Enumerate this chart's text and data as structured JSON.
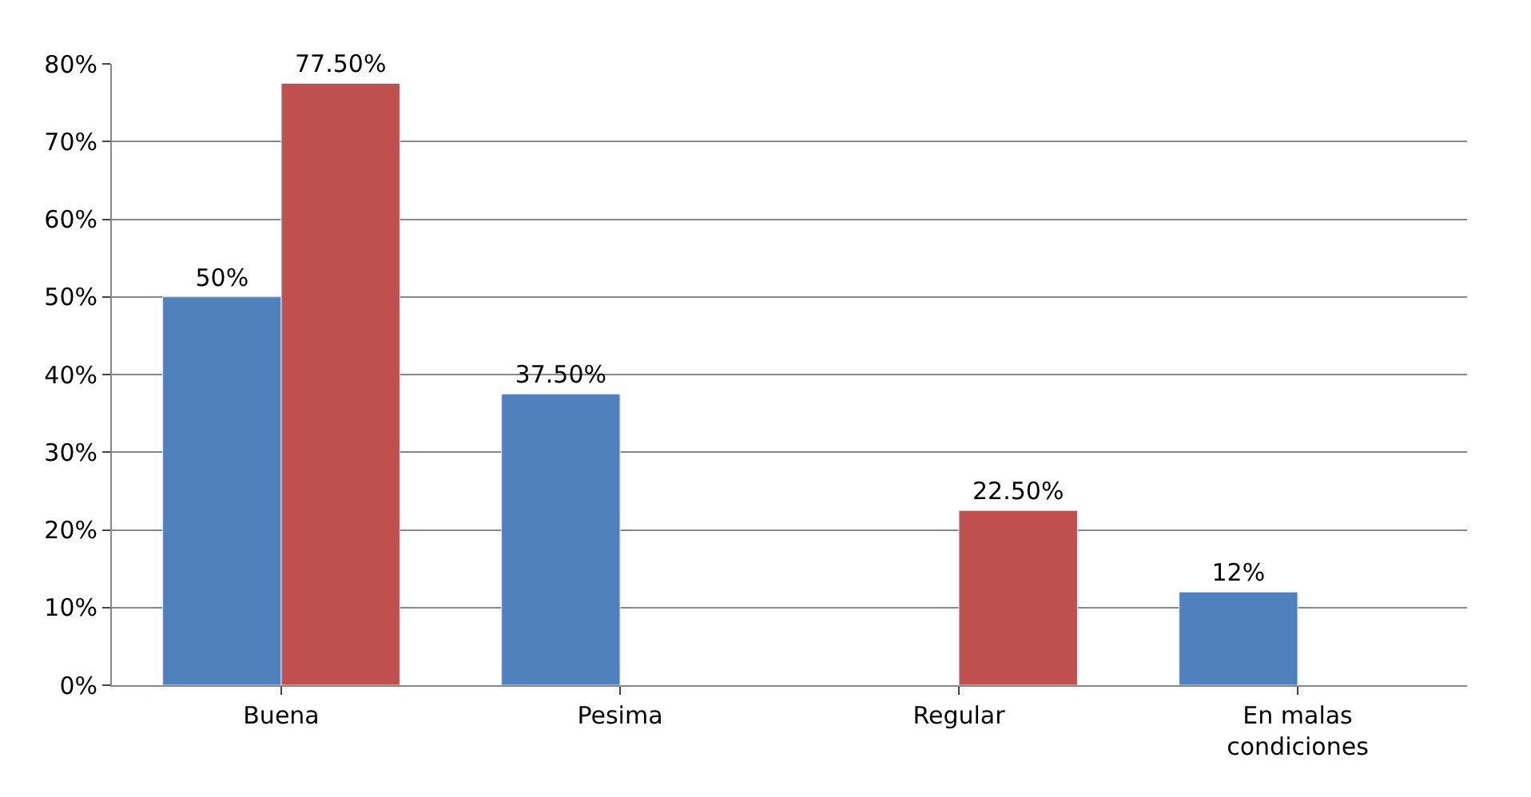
{
  "chart_data": {
    "type": "bar",
    "categories": [
      "Buena",
      "Pesima",
      "Regular",
      "En malas condiciones"
    ],
    "series": [
      {
        "color": "#4f81bd",
        "values": [
          50,
          37.5,
          null,
          12
        ],
        "value_labels": [
          "50%",
          "37.50%",
          null,
          "12%"
        ]
      },
      {
        "color": "#c0504d",
        "values": [
          77.5,
          null,
          22.5,
          null
        ],
        "value_labels": [
          "77.50%",
          null,
          "22.50%",
          null
        ]
      }
    ],
    "ylim": [
      0,
      80
    ],
    "yticks": [
      {
        "value": 0,
        "label": "0%"
      },
      {
        "value": 10,
        "label": "10%"
      },
      {
        "value": 20,
        "label": "20%"
      },
      {
        "value": 30,
        "label": "30%"
      },
      {
        "value": 40,
        "label": "40%"
      },
      {
        "value": 50,
        "label": "50%"
      },
      {
        "value": 60,
        "label": "60%"
      },
      {
        "value": 70,
        "label": "70%"
      },
      {
        "value": 80,
        "label": "80%"
      }
    ],
    "grid": "y"
  }
}
